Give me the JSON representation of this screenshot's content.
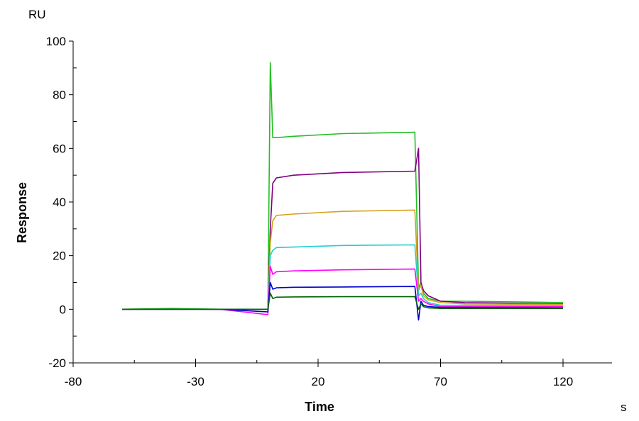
{
  "chart_data": {
    "type": "line",
    "title": "",
    "xlabel": "Time",
    "xunit": "s",
    "ylabel": "Response",
    "yunit": "RU",
    "xlim": [
      -80,
      140
    ],
    "ylim": [
      -20,
      100
    ],
    "xticks": [
      -80,
      -30,
      20,
      70,
      120
    ],
    "yticks": [
      -20,
      0,
      20,
      40,
      60,
      80,
      100
    ],
    "grid": false,
    "legend": "none",
    "x": [
      -60,
      -40,
      -20,
      -0.5,
      0.5,
      1.5,
      3,
      10,
      30,
      59.5,
      61,
      62,
      63,
      65,
      70,
      80,
      120
    ],
    "series": [
      {
        "color": "#22c022",
        "values": [
          0,
          0.3,
          0,
          0,
          92,
          64,
          64,
          64.5,
          65.5,
          66,
          8,
          10,
          6,
          4,
          3,
          3,
          2.5
        ]
      },
      {
        "color": "#800080",
        "values": [
          0,
          0,
          0,
          0,
          30,
          47,
          49,
          50,
          51,
          51.5,
          60,
          10,
          7,
          5,
          3,
          2.5,
          2
        ]
      },
      {
        "color": "#d4a020",
        "values": [
          0,
          0,
          0,
          0,
          25,
          33,
          35,
          35.5,
          36.5,
          37,
          7,
          9,
          5,
          3.5,
          2.5,
          2,
          1.8
        ]
      },
      {
        "color": "#20d0d0",
        "values": [
          0,
          0,
          0,
          0,
          20,
          22,
          23,
          23.2,
          23.8,
          24,
          5,
          6,
          4,
          2.5,
          1.5,
          1.5,
          1.3
        ]
      },
      {
        "color": "#ff00ff",
        "values": [
          0,
          0,
          0,
          -2,
          16,
          13,
          14,
          14.3,
          14.7,
          15,
          3,
          4,
          3,
          2,
          1,
          1,
          1
        ]
      },
      {
        "color": "#0000cc",
        "values": [
          0,
          0,
          0,
          -1,
          10,
          7.5,
          8,
          8.2,
          8.3,
          8.5,
          -4,
          3,
          1.5,
          1,
          0.7,
          0.7,
          0.5
        ]
      },
      {
        "color": "#006400",
        "values": [
          0,
          0,
          0,
          0,
          6,
          4,
          4.5,
          4.6,
          4.7,
          4.7,
          0,
          2,
          1,
          0.5,
          0.3,
          0.3,
          0.3
        ]
      }
    ]
  }
}
